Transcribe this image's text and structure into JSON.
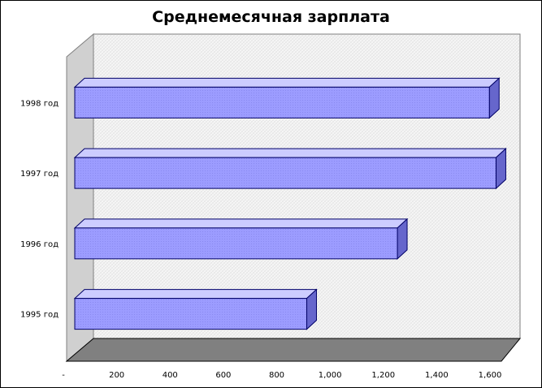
{
  "chart_data": {
    "type": "bar",
    "orientation": "horizontal",
    "style": "3d",
    "title": "Среднемесячная зарплата",
    "xlabel": "",
    "ylabel": "",
    "categories": [
      "1995 год",
      "1996 год",
      "1997 год",
      "1998 год"
    ],
    "values": [
      870,
      1210,
      1580,
      1555
    ],
    "xlim": [
      0,
      1600
    ],
    "xticks": [
      "-",
      "200",
      "400",
      "600",
      "800",
      "1,000",
      "1,200",
      "1,400",
      "1,600"
    ],
    "grid": false,
    "legend": "none",
    "colors": {
      "bar_front": "#9999ff",
      "bar_top": "#ccccff",
      "bar_side": "#6666cc",
      "bar_stroke": "#000066",
      "back_wall": "#f4f4f4",
      "side_wall": "#d0d0d0",
      "floor": "#808080"
    }
  }
}
